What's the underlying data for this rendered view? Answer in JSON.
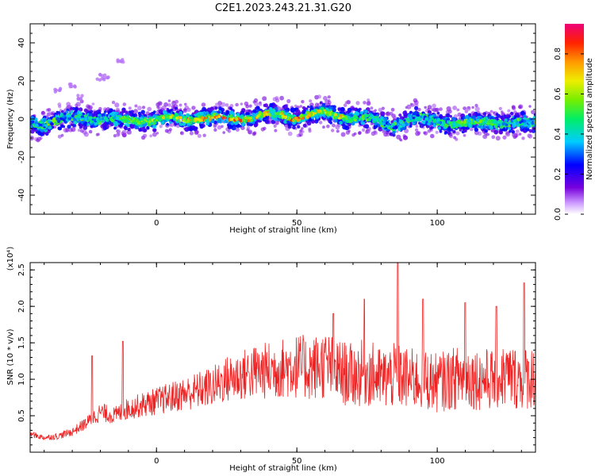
{
  "title": "C2E1.2023.243.21.31.G20",
  "colors": {
    "snr_line": "#ee2222",
    "axis": "#000000"
  },
  "chart_data": [
    {
      "type": "heatmap",
      "xlabel": "Height of straight line (km)",
      "ylabel": "Frequency (Hz)",
      "xlim": [
        -45,
        135
      ],
      "ylim": [
        -50,
        50
      ],
      "xticks": [
        0,
        50,
        100
      ],
      "yticks": [
        -40,
        -20,
        0,
        20,
        40
      ],
      "xtick_labels": [
        "0",
        "50",
        "100"
      ],
      "ytick_labels": [
        "-40",
        "-20",
        "0",
        "20",
        "40"
      ],
      "colormap": "rainbow (purple → blue → cyan → green → yellow → red → magenta)",
      "colorbar": {
        "label": "Normalized spectral amplitude",
        "range": [
          0,
          0.95
        ],
        "ticks": [
          0.0,
          0.2,
          0.4,
          0.6,
          0.8
        ],
        "tick_labels": [
          "0.0",
          "0.2",
          "0.4",
          "0.6",
          "0.8"
        ]
      },
      "ridge": {
        "x": [
          -45,
          -40,
          -35,
          -30,
          -25,
          -20,
          -15,
          -10,
          -5,
          0,
          5,
          10,
          15,
          20,
          25,
          30,
          35,
          40,
          45,
          50,
          55,
          60,
          65,
          70,
          75,
          80,
          85,
          90,
          95,
          100,
          105,
          110,
          115,
          120,
          125,
          130,
          135
        ],
        "freq_hz": [
          -2,
          -2,
          -1,
          0,
          1,
          0,
          -1,
          -1,
          0,
          -1,
          0,
          0,
          1,
          0,
          0,
          1,
          1,
          2,
          2,
          1,
          2,
          3,
          2,
          1,
          0,
          -2,
          -3,
          0,
          0,
          -1,
          -2,
          -3,
          -2,
          -1,
          -2,
          -3,
          -2
        ],
        "peak_amplitude": [
          0.35,
          0.38,
          0.4,
          0.42,
          0.45,
          0.5,
          0.55,
          0.6,
          0.65,
          0.7,
          0.75,
          0.8,
          0.85,
          0.85,
          0.9,
          0.88,
          0.85,
          0.85,
          0.82,
          0.9,
          0.8,
          0.75,
          0.78,
          0.65,
          0.55,
          0.45,
          0.4,
          0.42,
          0.45,
          0.5,
          0.55,
          0.6,
          0.6,
          0.55,
          0.5,
          0.45,
          0.4
        ]
      }
    },
    {
      "type": "line",
      "xlabel": "Height of straight line (km)",
      "ylabel": "SNR (10 * v/v)",
      "y_multiplier": "(x10⁴)",
      "xlim": [
        -45,
        135
      ],
      "ylim": [
        0,
        2.6
      ],
      "xticks": [
        0,
        50,
        100
      ],
      "yticks": [
        0.5,
        1.0,
        1.5,
        2.0,
        2.5
      ],
      "xtick_labels": [
        "0",
        "50",
        "100"
      ],
      "ytick_labels": [
        "0.5",
        "1.0",
        "1.5",
        "2.0",
        "2.5"
      ],
      "series": [
        {
          "x": [
            -45,
            -40,
            -35,
            -30,
            -25,
            -20,
            -15,
            -10,
            -5,
            0,
            5,
            10,
            15,
            20,
            25,
            30,
            35,
            40,
            45,
            50,
            55,
            60,
            65,
            70,
            75,
            80,
            85,
            90,
            95,
            100,
            105,
            110,
            115,
            120,
            125,
            130,
            135
          ],
          "y": [
            0.25,
            0.2,
            0.22,
            0.28,
            0.4,
            0.55,
            0.5,
            0.6,
            0.65,
            0.7,
            0.75,
            0.8,
            0.85,
            0.9,
            1.0,
            1.05,
            1.1,
            1.12,
            1.15,
            1.18,
            1.15,
            1.2,
            1.1,
            1.05,
            1.1,
            1.0,
            1.05,
            1.0,
            1.0,
            0.95,
            1.0,
            1.05,
            1.0,
            1.0,
            1.05,
            1.0,
            1.05
          ],
          "spikes": [
            {
              "x": -23,
              "y": 1.32
            },
            {
              "x": -12,
              "y": 1.52
            },
            {
              "x": 63,
              "y": 1.9
            },
            {
              "x": 74,
              "y": 2.1
            },
            {
              "x": 86,
              "y": 2.6
            },
            {
              "x": 95,
              "y": 2.1
            },
            {
              "x": 110,
              "y": 2.05
            },
            {
              "x": 121,
              "y": 2.0
            },
            {
              "x": 131,
              "y": 2.32
            }
          ]
        }
      ]
    }
  ]
}
